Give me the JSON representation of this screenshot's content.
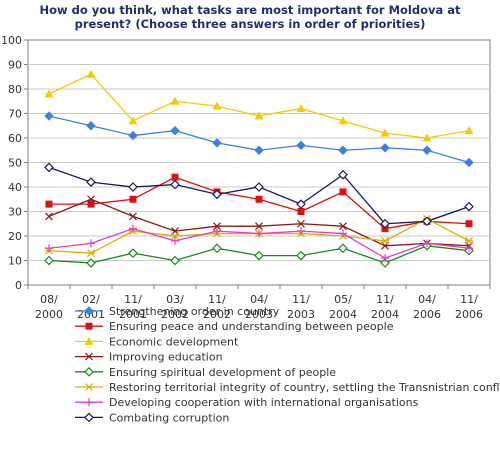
{
  "chart_data": {
    "type": "line",
    "title_lines": [
      "How do you think, what tasks are most important for Moldova at",
      "present? (Choose three answers in order of priorities)"
    ],
    "categories": [
      [
        "08/",
        "2000"
      ],
      [
        "02/",
        "2001"
      ],
      [
        "11/",
        "2001"
      ],
      [
        "03/",
        "2002"
      ],
      [
        "11/",
        "2002"
      ],
      [
        "04/",
        "2003"
      ],
      [
        "11/",
        "2003"
      ],
      [
        "05/",
        "2004"
      ],
      [
        "11/",
        "2004"
      ],
      [
        "04/",
        "2006"
      ],
      [
        "11/",
        "2006"
      ]
    ],
    "ylim": [
      0,
      100
    ],
    "yticks": [
      "0",
      "10",
      "20",
      "30",
      "40",
      "50",
      "60",
      "70",
      "80",
      "90",
      "100"
    ],
    "grid": true,
    "legend_position": "bottom",
    "series": [
      {
        "name": "Strengthening order in country",
        "color": "#3f7fe0",
        "marker": "diamond",
        "values": [
          69,
          65,
          61,
          63,
          58,
          55,
          57,
          55,
          56,
          55,
          50
        ]
      },
      {
        "name": "Ensuring peace and understanding between people",
        "color": "#e01010",
        "marker": "square",
        "values": [
          33,
          33,
          35,
          44,
          38,
          35,
          30,
          38,
          23,
          26,
          25
        ]
      },
      {
        "name": "Economic development",
        "color": "#f0cc00",
        "marker": "triangle",
        "values": [
          78,
          86,
          67,
          75,
          73,
          69,
          72,
          67,
          62,
          60,
          63
        ]
      },
      {
        "name": "Improving education",
        "color": "#8a1a1a",
        "marker": "x",
        "values": [
          28,
          35,
          28,
          22,
          24,
          24,
          25,
          24,
          16,
          17,
          16
        ]
      },
      {
        "name": "Ensuring spiritual development of people",
        "color": "#1a8a1a",
        "marker": "diamond-open",
        "values": [
          10,
          9,
          13,
          10,
          15,
          12,
          12,
          15,
          9,
          16,
          14
        ]
      },
      {
        "name": "Restoring territorial integrity of country, settling the Transnistrian conflict",
        "color": "#d8b000",
        "marker": "asterisk",
        "values": [
          14,
          13,
          22,
          20,
          21,
          21,
          21,
          20,
          18,
          27,
          18
        ]
      },
      {
        "name": "Developing cooperation with international organisations",
        "color": "#e040c8",
        "marker": "plus",
        "values": [
          15,
          17,
          23,
          18,
          22,
          21,
          22,
          21,
          11,
          17,
          15
        ]
      },
      {
        "name": "Combating corruption",
        "color": "#1a1a5a",
        "marker": "diamond-open",
        "values": [
          48,
          42,
          40,
          41,
          37,
          40,
          33,
          45,
          25,
          26,
          32
        ]
      }
    ]
  }
}
